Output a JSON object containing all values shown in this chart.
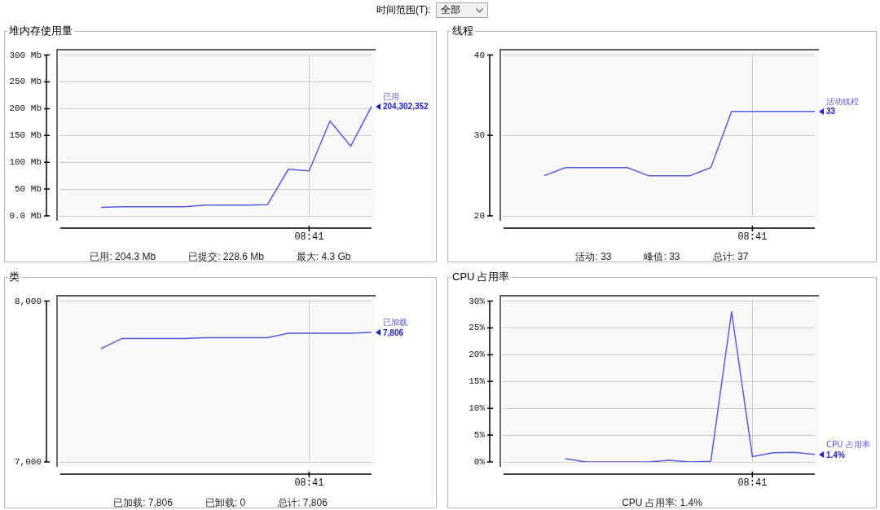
{
  "chart_data": [
    {
      "type": "other",
      "title": "时间范围(T):",
      "annotations": [
        "全部"
      ]
    },
    {
      "type": "line",
      "title": "堆内存使用量",
      "categories": [
        null,
        null,
        null,
        null,
        null,
        null,
        null,
        null,
        null,
        null,
        null,
        null,
        "08:41",
        null,
        null,
        null
      ],
      "series": [
        {
          "name": "已用",
          "color": "#5a5adc",
          "values": [
            null,
            null,
            16,
            17,
            17,
            17,
            17,
            20,
            20,
            20,
            21,
            87,
            84,
            177,
            130,
            204.3
          ]
        }
      ],
      "ylim": [
        0,
        300
      ],
      "yticks": [
        {
          "value": 0,
          "label": "0.0 Mb"
        },
        {
          "value": 50,
          "label": "50 Mb"
        },
        {
          "value": 100,
          "label": "100 Mb"
        },
        {
          "value": 150,
          "label": "150 Mb"
        },
        {
          "value": 200,
          "label": "200 Mb"
        },
        {
          "value": 250,
          "label": "250 Mb"
        },
        {
          "value": 300,
          "label": "300 Mb"
        }
      ],
      "grid": true,
      "marker": "none",
      "annotations": [
        "204,302,352",
        "已用: 204.3 Mb",
        "已提交: 228.6 Mb",
        "最大: 4.3 Gb"
      ]
    },
    {
      "type": "line",
      "title": "线程",
      "categories": [
        null,
        null,
        null,
        null,
        null,
        null,
        null,
        null,
        null,
        null,
        null,
        null,
        "08:41",
        null,
        null,
        null
      ],
      "series": [
        {
          "name": "活动线程",
          "color": "#5a5adc",
          "values": [
            null,
            null,
            25,
            26,
            26,
            26,
            26,
            25,
            25,
            25,
            26,
            33,
            33,
            33,
            33,
            33
          ],
          "value_labels": [
            null,
            null,
            null,
            null,
            null,
            null,
            null,
            null,
            null,
            null,
            null,
            null,
            null,
            null,
            null,
            "33"
          ]
        }
      ],
      "ylim": [
        20,
        40
      ],
      "yticks": [
        20,
        30,
        40
      ],
      "grid": true,
      "marker": "none",
      "annotations": [
        "活动: 33",
        "峰值: 33",
        "总计: 37"
      ]
    },
    {
      "type": "line",
      "title": "类",
      "categories": [
        null,
        null,
        null,
        null,
        null,
        null,
        null,
        null,
        null,
        null,
        null,
        null,
        "08:41",
        null,
        null,
        null
      ],
      "series": [
        {
          "name": "已加载",
          "color": "#5a5adc",
          "values": [
            null,
            null,
            7705,
            7767,
            7767,
            7767,
            7767,
            7772,
            7772,
            7772,
            7772,
            7800,
            7800,
            7800,
            7800,
            7806
          ],
          "value_labels": [
            null,
            null,
            null,
            null,
            null,
            null,
            null,
            null,
            null,
            null,
            null,
            null,
            null,
            null,
            null,
            "7,806"
          ]
        }
      ],
      "ylim": [
        7000,
        8000
      ],
      "yticks": [
        {
          "value": 7000,
          "label": "7,000"
        },
        {
          "value": 8000,
          "label": "8,000"
        }
      ],
      "grid": true,
      "marker": "none",
      "annotations": [
        "已加载: 7,806",
        "已卸载: 0",
        "总计: 7,806"
      ]
    },
    {
      "type": "line",
      "title": "CPU 占用率",
      "categories": [
        null,
        null,
        null,
        null,
        null,
        null,
        null,
        null,
        null,
        null,
        null,
        null,
        "08:41",
        null,
        null,
        null
      ],
      "series": [
        {
          "name": "CPU 占用率",
          "color": "#5a5adc",
          "values": [
            null,
            null,
            null,
            0.6,
            0,
            0,
            0,
            0,
            0.3,
            0,
            0.1,
            28,
            1,
            1.7,
            1.8,
            1.4
          ],
          "value_labels": [
            null,
            null,
            null,
            null,
            null,
            null,
            null,
            null,
            null,
            null,
            null,
            null,
            null,
            null,
            null,
            "1.4%"
          ]
        }
      ],
      "ylim": [
        0,
        30
      ],
      "yticks": [
        {
          "value": 0,
          "label": "0%"
        },
        {
          "value": 5,
          "label": "5%"
        },
        {
          "value": 10,
          "label": "10%"
        },
        {
          "value": 15,
          "label": "15%"
        },
        {
          "value": 20,
          "label": "20%"
        },
        {
          "value": 25,
          "label": "25%"
        },
        {
          "value": 30,
          "label": "30%"
        }
      ],
      "grid": true,
      "marker": "none",
      "annotations": [
        "CPU 占用率: 1.4%"
      ]
    }
  ]
}
